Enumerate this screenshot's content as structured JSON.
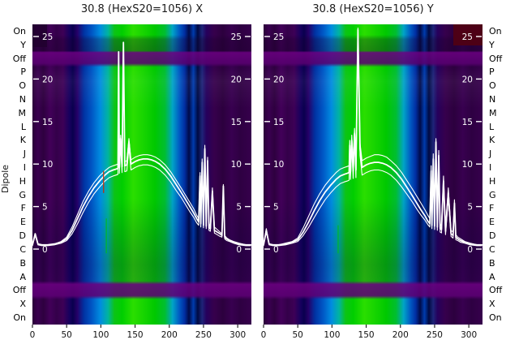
{
  "figure": {
    "ylabel": "Dipole",
    "row_labels": [
      "On",
      "Y",
      "Off",
      "P",
      "O",
      "N",
      "M",
      "L",
      "K",
      "J",
      "I",
      "H",
      "G",
      "F",
      "E",
      "D",
      "C",
      "B",
      "A",
      "Off",
      "X",
      "On"
    ]
  },
  "colors": {
    "trace": "#ffffff",
    "off_band": "#70008a",
    "text": "#111111",
    "colormap": [
      "#2b0039",
      "#09004e",
      "#0032a2",
      "#008ce0",
      "#2ade00",
      "#36004c"
    ]
  },
  "artifacts": [
    {
      "panel": 0,
      "x": 104,
      "v_from": 6.6,
      "v_to": 9.2,
      "color": "#cc2a00",
      "w": 1.2
    },
    {
      "panel": 0,
      "x": 108,
      "v_from": -0.5,
      "v_to": 3.6,
      "color": "#00b82a",
      "w": 1.2
    },
    {
      "panel": 1,
      "x": 109,
      "v_from": -0.5,
      "v_to": 2.8,
      "color": "#00b82a",
      "w": 1.2
    }
  ],
  "chart_data": [
    {
      "type": "heatmap",
      "title": "30.8 (HexS20=1056) X",
      "x_range": [
        0,
        320
      ],
      "x_ticks": [
        0,
        50,
        100,
        150,
        200,
        250,
        300
      ],
      "inner_y_ticks": [
        25,
        20,
        15,
        10,
        5,
        0
      ],
      "inner_y_range": [
        0,
        26.5
      ],
      "colormap_note": "purple background, blue-cyan-green central band x=100..225, dark navy stripes x=240..262, magenta Off bands",
      "overlay_series": [
        {
          "name": "lower",
          "x": [
            0,
            4,
            8,
            14,
            22,
            32,
            42,
            50,
            58,
            66,
            74,
            82,
            90,
            98,
            106,
            112,
            118,
            122,
            125,
            126,
            127,
            129,
            131,
            133,
            135,
            138,
            141,
            144,
            146,
            150,
            156,
            162,
            168,
            174,
            180,
            186,
            194,
            202,
            210,
            218,
            224,
            230,
            236,
            240,
            243,
            245,
            246,
            248,
            250,
            252,
            254,
            256,
            258,
            260,
            263,
            266,
            270,
            274,
            277,
            279,
            281,
            284,
            288,
            294,
            302,
            312,
            319
          ],
          "y": [
            0.4,
            1.6,
            0.5,
            0.4,
            0.4,
            0.5,
            0.7,
            1.0,
            1.8,
            3.0,
            4.3,
            5.5,
            6.5,
            7.3,
            8.0,
            8.4,
            8.6,
            8.7,
            8.8,
            22.8,
            8.9,
            12.4,
            9.0,
            23.8,
            9.1,
            9.2,
            12.0,
            9.3,
            9.4,
            9.6,
            9.8,
            9.9,
            9.9,
            9.8,
            9.6,
            9.3,
            8.7,
            7.9,
            6.9,
            6.0,
            5.2,
            4.4,
            3.7,
            3.1,
            2.8,
            8.2,
            2.6,
            9.8,
            2.5,
            11.4,
            2.4,
            10.0,
            2.2,
            2.1,
            6.4,
            1.9,
            1.7,
            1.5,
            1.4,
            7.0,
            1.2,
            1.0,
            0.9,
            0.7,
            0.5,
            0.4,
            0.4
          ]
        },
        {
          "name": "main",
          "x": [
            0,
            4,
            8,
            14,
            22,
            32,
            42,
            50,
            58,
            66,
            74,
            82,
            90,
            98,
            106,
            112,
            118,
            122,
            125,
            126,
            127,
            129,
            131,
            133,
            135,
            138,
            141,
            144,
            146,
            150,
            156,
            162,
            168,
            174,
            180,
            186,
            194,
            202,
            210,
            218,
            224,
            230,
            236,
            240,
            243,
            245,
            246,
            248,
            250,
            252,
            254,
            256,
            258,
            260,
            263,
            266,
            270,
            274,
            277,
            279,
            281,
            284,
            288,
            294,
            302,
            312,
            319
          ],
          "y": [
            0.5,
            1.8,
            0.6,
            0.5,
            0.5,
            0.6,
            0.8,
            1.2,
            2.2,
            3.6,
            5.0,
            6.2,
            7.2,
            8.0,
            8.7,
            9.1,
            9.3,
            9.4,
            9.5,
            23.2,
            9.6,
            13.0,
            9.7,
            24.3,
            9.8,
            9.9,
            12.6,
            10.0,
            10.1,
            10.3,
            10.5,
            10.6,
            10.6,
            10.5,
            10.3,
            10.0,
            9.4,
            8.6,
            7.6,
            6.6,
            5.8,
            5.0,
            4.2,
            3.6,
            3.2,
            8.6,
            3.0,
            10.2,
            2.8,
            11.8,
            2.7,
            10.4,
            2.5,
            2.4,
            6.8,
            2.2,
            2.0,
            1.8,
            1.6,
            7.4,
            1.4,
            1.2,
            1.0,
            0.8,
            0.6,
            0.5,
            0.5
          ]
        },
        {
          "name": "upper",
          "x": [
            0,
            4,
            8,
            14,
            22,
            32,
            42,
            50,
            58,
            66,
            74,
            82,
            90,
            98,
            106,
            112,
            118,
            122,
            125,
            126,
            127,
            129,
            131,
            133,
            135,
            138,
            141,
            144,
            146,
            150,
            156,
            162,
            168,
            174,
            180,
            186,
            194,
            202,
            210,
            218,
            224,
            230,
            236,
            240,
            243,
            245,
            246,
            248,
            250,
            252,
            254,
            256,
            258,
            260,
            263,
            266,
            270,
            274,
            277,
            279,
            281,
            284,
            288,
            294,
            302,
            312,
            319
          ],
          "y": [
            0.5,
            1.8,
            0.6,
            0.5,
            0.5,
            0.6,
            0.9,
            1.4,
            2.6,
            4.1,
            5.6,
            6.8,
            7.8,
            8.6,
            9.2,
            9.6,
            9.8,
            9.9,
            10.0,
            23.2,
            10.1,
            13.4,
            10.2,
            24.3,
            10.3,
            10.4,
            13.0,
            10.5,
            10.6,
            10.8,
            11.0,
            11.1,
            11.1,
            11.0,
            10.8,
            10.5,
            9.9,
            9.1,
            8.1,
            7.1,
            6.3,
            5.5,
            4.7,
            4.0,
            3.6,
            9.0,
            3.4,
            10.6,
            3.2,
            12.2,
            3.1,
            10.8,
            2.9,
            2.8,
            7.2,
            2.6,
            2.3,
            2.0,
            1.8,
            7.6,
            1.6,
            1.3,
            1.1,
            0.9,
            0.7,
            0.5,
            0.5
          ]
        }
      ]
    },
    {
      "type": "heatmap",
      "title": "30.8 (HexS20=1056) Y",
      "x_range": [
        0,
        320
      ],
      "x_ticks": [
        0,
        50,
        100,
        150,
        200,
        250,
        300
      ],
      "inner_y_ticks": [
        25,
        20,
        15,
        10,
        5,
        0
      ],
      "inner_y_range": [
        0,
        26.5
      ],
      "colormap_note": "same colormap; tall single spike near x=138 reaching top; maroon patch top-right",
      "overlay_series": [
        {
          "name": "lower",
          "x": [
            0,
            4,
            8,
            14,
            22,
            32,
            42,
            50,
            58,
            66,
            74,
            82,
            90,
            98,
            106,
            112,
            118,
            122,
            125,
            126,
            127,
            129,
            131,
            133,
            135,
            138,
            141,
            144,
            146,
            150,
            156,
            162,
            168,
            174,
            180,
            186,
            194,
            202,
            210,
            218,
            224,
            230,
            236,
            240,
            243,
            245,
            246,
            248,
            250,
            252,
            254,
            256,
            258,
            260,
            263,
            266,
            270,
            274,
            277,
            279,
            281,
            284,
            288,
            294,
            302,
            312,
            319
          ],
          "y": [
            0.4,
            2.0,
            0.5,
            0.4,
            0.4,
            0.5,
            0.7,
            0.9,
            1.6,
            2.6,
            3.7,
            4.8,
            5.8,
            6.6,
            7.3,
            7.7,
            7.9,
            8.0,
            8.1,
            11.6,
            8.2,
            12.2,
            8.3,
            13.0,
            8.4,
            25.4,
            11.0,
            8.7,
            8.8,
            9.0,
            9.2,
            9.3,
            9.3,
            9.2,
            9.0,
            8.7,
            8.1,
            7.3,
            6.4,
            5.5,
            4.7,
            4.0,
            3.4,
            2.9,
            2.6,
            8.6,
            2.4,
            10.0,
            2.3,
            12.0,
            2.2,
            10.4,
            2.0,
            1.9,
            7.4,
            1.7,
            6.0,
            1.5,
            1.3,
            5.0,
            1.1,
            1.0,
            0.8,
            0.7,
            0.5,
            0.4,
            0.4
          ]
        },
        {
          "name": "main",
          "x": [
            0,
            4,
            8,
            14,
            22,
            32,
            42,
            50,
            58,
            66,
            74,
            82,
            90,
            98,
            106,
            112,
            118,
            122,
            125,
            126,
            127,
            129,
            131,
            133,
            135,
            138,
            141,
            144,
            146,
            150,
            156,
            162,
            168,
            174,
            180,
            186,
            194,
            202,
            210,
            218,
            224,
            230,
            236,
            240,
            243,
            245,
            246,
            248,
            250,
            252,
            254,
            256,
            258,
            260,
            263,
            266,
            270,
            274,
            277,
            279,
            281,
            284,
            288,
            294,
            302,
            312,
            319
          ],
          "y": [
            0.5,
            2.2,
            0.6,
            0.5,
            0.5,
            0.6,
            0.8,
            1.1,
            2.0,
            3.2,
            4.5,
            5.7,
            6.7,
            7.5,
            8.2,
            8.6,
            8.8,
            8.9,
            9.0,
            12.2,
            9.1,
            12.8,
            9.2,
            13.6,
            9.3,
            25.8,
            11.8,
            9.6,
            9.7,
            9.9,
            10.1,
            10.2,
            10.2,
            10.1,
            9.9,
            9.6,
            9.0,
            8.2,
            7.2,
            6.2,
            5.4,
            4.6,
            3.9,
            3.3,
            3.0,
            9.2,
            2.8,
            10.6,
            2.7,
            12.6,
            2.6,
            11.0,
            2.4,
            2.3,
            8.0,
            2.1,
            6.6,
            1.8,
            1.6,
            5.4,
            1.4,
            1.2,
            1.0,
            0.8,
            0.6,
            0.5,
            0.5
          ]
        },
        {
          "name": "upper",
          "x": [
            0,
            4,
            8,
            14,
            22,
            32,
            42,
            50,
            58,
            66,
            74,
            82,
            90,
            98,
            106,
            112,
            118,
            122,
            125,
            126,
            127,
            129,
            131,
            133,
            135,
            138,
            141,
            144,
            146,
            150,
            156,
            162,
            168,
            174,
            180,
            186,
            194,
            202,
            210,
            218,
            224,
            230,
            236,
            240,
            243,
            245,
            246,
            248,
            250,
            252,
            254,
            256,
            258,
            260,
            263,
            266,
            270,
            274,
            277,
            279,
            281,
            284,
            288,
            294,
            302,
            312,
            319
          ],
          "y": [
            0.5,
            2.4,
            0.6,
            0.5,
            0.5,
            0.7,
            0.9,
            1.3,
            2.5,
            3.9,
            5.3,
            6.5,
            7.5,
            8.3,
            9.0,
            9.4,
            9.6,
            9.7,
            9.8,
            12.8,
            9.9,
            13.4,
            10.0,
            14.2,
            10.1,
            26.0,
            12.4,
            10.4,
            10.5,
            10.7,
            10.9,
            11.1,
            11.1,
            11.0,
            10.8,
            10.4,
            9.8,
            9.0,
            8.0,
            7.0,
            6.2,
            5.4,
            4.6,
            4.0,
            3.6,
            9.8,
            3.4,
            11.2,
            3.2,
            13.0,
            3.1,
            11.6,
            2.9,
            2.8,
            8.6,
            2.6,
            7.2,
            2.2,
            2.0,
            5.8,
            1.7,
            1.4,
            1.2,
            0.9,
            0.7,
            0.5,
            0.5
          ]
        }
      ]
    }
  ]
}
